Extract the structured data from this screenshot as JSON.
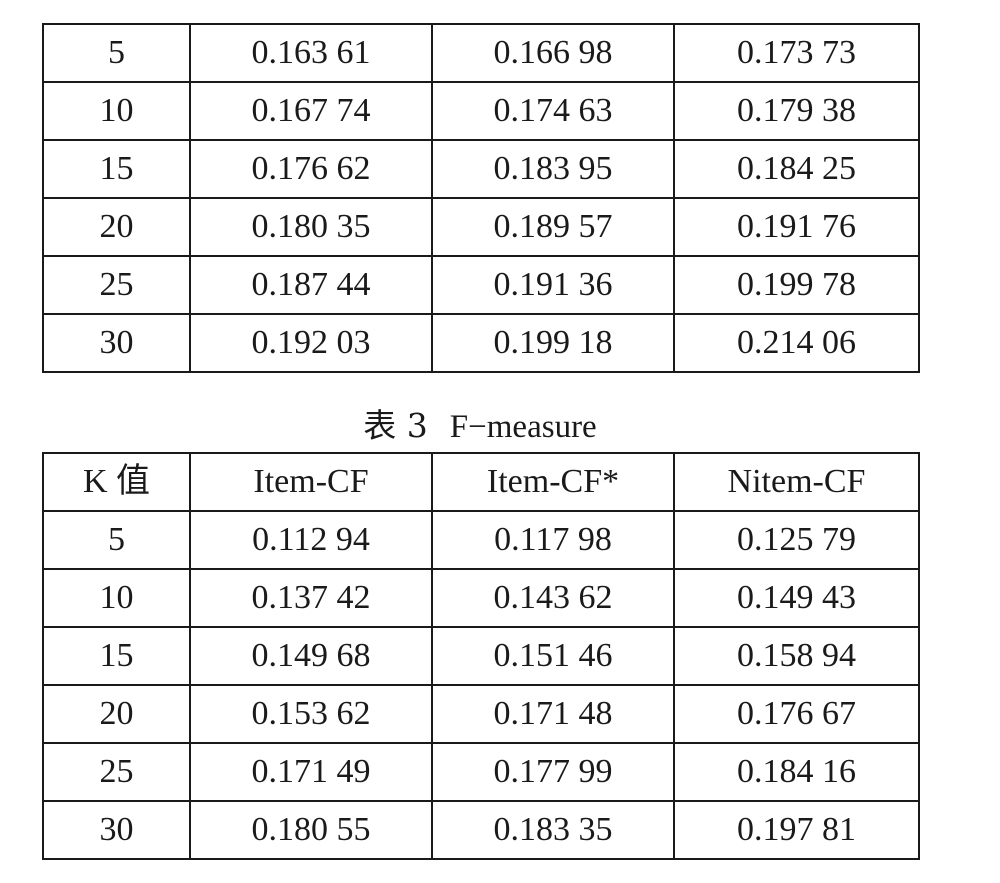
{
  "table_top": {
    "rows": [
      [
        "5",
        "0.163 61",
        "0.166 98",
        "0.173 73"
      ],
      [
        "10",
        "0.167 74",
        "0.174 63",
        "0.179 38"
      ],
      [
        "15",
        "0.176 62",
        "0.183 95",
        "0.184 25"
      ],
      [
        "20",
        "0.180 35",
        "0.189 57",
        "0.191 76"
      ],
      [
        "25",
        "0.187 44",
        "0.191 36",
        "0.199 78"
      ],
      [
        "30",
        "0.192 03",
        "0.199 18",
        "0.214 06"
      ]
    ]
  },
  "caption": {
    "label": "表 3",
    "title": "F−measure"
  },
  "table_bottom": {
    "header": [
      "K 值",
      "Item-CF",
      "Item-CF*",
      "Nitem-CF"
    ],
    "rows": [
      [
        "5",
        "0.112 94",
        "0.117 98",
        "0.125 79"
      ],
      [
        "10",
        "0.137 42",
        "0.143 62",
        "0.149 43"
      ],
      [
        "15",
        "0.149 68",
        "0.151 46",
        "0.158 94"
      ],
      [
        "20",
        "0.153 62",
        "0.171 48",
        "0.176 67"
      ],
      [
        "25",
        "0.171 49",
        "0.177 99",
        "0.184 16"
      ],
      [
        "30",
        "0.180 55",
        "0.183 35",
        "0.197 81"
      ]
    ]
  }
}
